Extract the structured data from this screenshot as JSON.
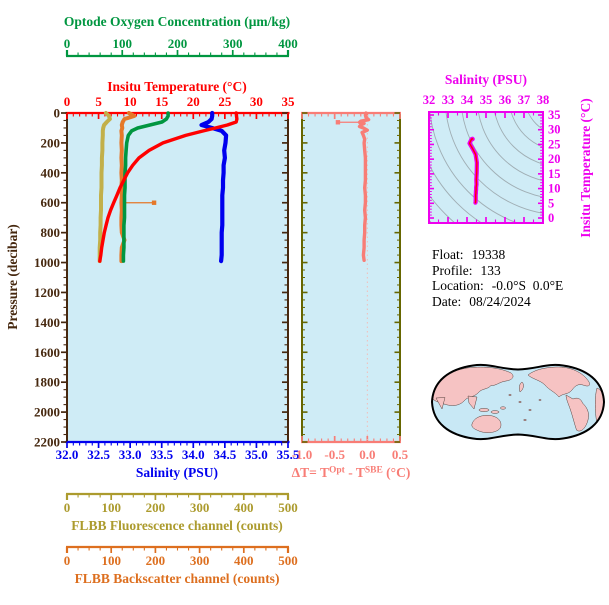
{
  "figure": {
    "kind": "Argo float profile plot"
  },
  "colors": {
    "plot_bg": "#cfecf6",
    "frame_brown": "#46280f",
    "temperature_red": "#ff0000",
    "salinity_blue": "#0000ee",
    "oxygen_green": "#009640",
    "fluorescence_olive": "#ac9b2e",
    "fluorescence_curve": "#c2b04a",
    "backscatter_orange": "#dd6f1f",
    "backscatter_curve": "#e57829",
    "delta_t_salmon": "#f87d76",
    "delta_t_frame": "#666600",
    "ts_magenta": "#ee00ee",
    "contour_gray": "#a0aeb4",
    "map_land": "#f6c3c3",
    "map_ocean": "#c8e8f5",
    "map_outline": "#000000"
  },
  "axes": {
    "oxygen": {
      "title": "Optode Oxygen Concentration (μm/kg)",
      "min": 0,
      "max": 400,
      "major": 100,
      "minor": 20,
      "labels": [
        "0",
        "100",
        "200",
        "300",
        "400"
      ]
    },
    "temperature": {
      "title": "Insitu Temperature (°C)",
      "min": 0,
      "max": 35,
      "major": 5,
      "minor": 1,
      "labels": [
        "0",
        "5",
        "10",
        "15",
        "20",
        "25",
        "30",
        "35"
      ]
    },
    "pressure": {
      "title": "Pressure (decibar)",
      "min": 0,
      "max": 2200,
      "major": 200,
      "minor": 50,
      "labels": [
        "0",
        "200",
        "400",
        "600",
        "800",
        "1000",
        "1200",
        "1400",
        "1600",
        "1800",
        "2000",
        "2200"
      ]
    },
    "salinity": {
      "title": "Salinity (PSU)",
      "min": 32,
      "max": 35.5,
      "major": 0.5,
      "minor": 0.1,
      "labels": [
        "32.0",
        "32.5",
        "33.0",
        "33.5",
        "34.0",
        "34.5",
        "35.0",
        "35.5"
      ]
    },
    "fluorescence": {
      "title": "FLBB Fluorescence channel (counts)",
      "min": 0,
      "max": 500,
      "major": 100,
      "minor": 25,
      "labels": [
        "0",
        "100",
        "200",
        "300",
        "400",
        "500"
      ]
    },
    "backscatter": {
      "title": "FLBB Backscatter channel (counts)",
      "min": 0,
      "max": 500,
      "major": 100,
      "minor": 25,
      "labels": [
        "0",
        "100",
        "200",
        "300",
        "400",
        "500"
      ]
    },
    "delta_t": {
      "title_t1": "ΔT= T",
      "title_sup1": "Opt",
      "title_t2": " - T",
      "title_sup2": "SBE",
      "title_t3": " (°C)",
      "min": -1.0,
      "max": 0.5,
      "major": 0.5,
      "minor": 0.1,
      "labels": [
        "-1.0",
        "-0.5",
        "0.0",
        "0.5"
      ]
    },
    "ts_salinity": {
      "title": "Salinity (PSU)",
      "min": 32,
      "max": 38,
      "major": 1,
      "minor": 0.5,
      "labels": [
        "32",
        "33",
        "34",
        "35",
        "36",
        "37",
        "38"
      ]
    },
    "ts_temperature": {
      "title": "Insitu Temperature (°C)",
      "min": 0,
      "max": 35,
      "major": 5,
      "minor": 1,
      "labels": [
        "0",
        "5",
        "10",
        "15",
        "20",
        "25",
        "30",
        "35"
      ]
    }
  },
  "float_info": {
    "rows": [
      {
        "label": "Float:",
        "value": "19338"
      },
      {
        "label": "Profile:",
        "value": "133"
      },
      {
        "label": "Location:",
        "value": "-0.0°S  0.0°E"
      },
      {
        "label": "Date:",
        "value": "08/24/2024"
      }
    ]
  },
  "chart_data": {
    "type": "line",
    "title": "Argo float 19338 profile 133 vertical profiles",
    "ylabel": "Pressure (decibar)",
    "ylim": [
      0,
      2200
    ],
    "y_inverted": true,
    "profile_pressures": [
      0,
      20,
      40,
      60,
      80,
      100,
      120,
      150,
      200,
      250,
      300,
      350,
      400,
      450,
      500,
      550,
      600,
      650,
      700,
      750,
      800,
      850,
      900,
      950,
      990
    ],
    "series": [
      {
        "name": "Insitu Temperature",
        "axis": "temperature",
        "units": "°C",
        "color": "#ff0000",
        "width": 3.4,
        "values": [
          26.8,
          26.85,
          26.9,
          26.8,
          25.4,
          23.5,
          21.6,
          18.8,
          15.2,
          13.0,
          11.4,
          10.4,
          9.6,
          9.0,
          8.4,
          7.9,
          7.4,
          6.9,
          6.5,
          6.2,
          5.9,
          5.7,
          5.5,
          5.35,
          5.2
        ]
      },
      {
        "name": "Salinity",
        "axis": "salinity",
        "units": "PSU",
        "color": "#0000ee",
        "width": 4.2,
        "values": [
          34.3,
          34.3,
          34.29,
          34.24,
          34.13,
          34.3,
          34.45,
          34.52,
          34.51,
          34.49,
          34.5,
          34.48,
          34.48,
          34.47,
          34.47,
          34.46,
          34.46,
          34.46,
          34.46,
          34.46,
          34.45,
          34.45,
          34.45,
          34.45,
          34.44
        ]
      },
      {
        "name": "Optode Oxygen Concentration",
        "axis": "oxygen",
        "units": "μm/kg",
        "color": "#009640",
        "width": 3.6,
        "values": [
          183,
          183,
          180,
          172,
          150,
          128,
          117,
          111,
          108,
          107,
          106,
          106,
          105,
          105,
          105,
          104,
          104,
          104,
          104,
          103,
          103,
          103,
          103,
          102,
          102
        ]
      },
      {
        "name": "FLBB Fluorescence channel",
        "axis": "fluorescence",
        "units": "counts",
        "color": "#c2b04a",
        "width": 4.0,
        "values": [
          88,
          95,
          97,
          90,
          84,
          82,
          81,
          81,
          80,
          80,
          79,
          79,
          78,
          78,
          78,
          77,
          77,
          77,
          76,
          76,
          75,
          75,
          74,
          74,
          74
        ]
      },
      {
        "name": "FLBB Backscatter channel",
        "axis": "backscatter",
        "units": "counts",
        "color": "#e57829",
        "width": 4.0,
        "values": [
          140,
          152,
          130,
          126,
          124,
          125,
          123,
          124,
          123,
          124,
          123,
          124,
          123,
          124,
          123,
          124,
          123,
          124,
          123,
          123,
          124,
          130,
          124,
          123,
          123
        ],
        "spike": {
          "pressure": 600,
          "tip": 197
        }
      }
    ],
    "delta_t_panel": {
      "xlabel": "ΔT= T(Opt) - T(SBE) (°C)",
      "xlim": [
        -1.0,
        0.5
      ],
      "color": "#f87d76",
      "pressures": [
        0,
        15,
        30,
        45,
        55,
        62,
        70,
        80,
        90,
        100,
        115,
        130,
        150,
        175,
        200,
        250,
        300,
        350,
        400,
        450,
        500,
        550,
        600,
        650,
        700,
        750,
        800,
        850,
        900,
        950,
        985
      ],
      "values": [
        -0.02,
        -0.03,
        -0.02,
        0.02,
        -0.1,
        -0.12,
        -0.05,
        -0.1,
        -0.12,
        -0.06,
        0.0,
        -0.08,
        -0.06,
        -0.04,
        -0.05,
        -0.04,
        -0.03,
        -0.03,
        -0.03,
        -0.03,
        -0.04,
        -0.03,
        -0.03,
        -0.04,
        -0.03,
        -0.04,
        -0.04,
        -0.05,
        -0.05,
        -0.06,
        -0.05
      ],
      "spike": {
        "pressure": 62,
        "tip": -0.45
      },
      "zero_line": 0.0
    },
    "ts_diagram": {
      "xlabel": "Salinity (PSU)",
      "ylabel": "Insitu Temperature (°C)",
      "xlim": [
        32,
        38
      ],
      "ylim": [
        0,
        35
      ],
      "note": "curve built from paired salinity/temperature profile values",
      "curve_color": "#ee00ee",
      "inner_line_color": "#ff0000",
      "isopycnal_contours": true
    }
  }
}
